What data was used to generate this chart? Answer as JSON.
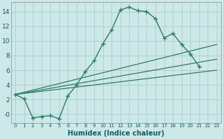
{
  "xlabel": "Humidex (Indice chaleur)",
  "background_color": "#cde8e8",
  "grid_color": "#b0d0d0",
  "line_color": "#2d7a6a",
  "xlim": [
    -0.5,
    23.5
  ],
  "ylim": [
    -1.2,
    15.3
  ],
  "xticks": [
    0,
    1,
    2,
    3,
    4,
    5,
    6,
    7,
    8,
    9,
    10,
    11,
    12,
    13,
    14,
    15,
    16,
    17,
    18,
    19,
    20,
    21,
    22,
    23
  ],
  "yticks": [
    0,
    2,
    4,
    6,
    8,
    10,
    12,
    14
  ],
  "ytick_labels": [
    "-0",
    "2",
    "4",
    "6",
    "8",
    "10",
    "12",
    "14"
  ],
  "main_series": {
    "x": [
      0,
      1,
      2,
      3,
      4,
      5,
      6,
      7,
      8,
      9,
      10,
      11,
      12,
      13,
      14,
      15,
      16,
      17,
      18,
      19,
      20,
      21
    ],
    "y": [
      2.7,
      2.1,
      -0.5,
      -0.3,
      -0.2,
      -0.6,
      2.5,
      4.0,
      5.8,
      7.3,
      9.6,
      11.5,
      14.2,
      14.6,
      14.1,
      14.0,
      13.0,
      10.4,
      11.0,
      9.5,
      8.2,
      6.5
    ]
  },
  "straight_lines": [
    {
      "x": [
        0,
        23
      ],
      "y": [
        2.7,
        9.5
      ]
    },
    {
      "x": [
        0,
        23
      ],
      "y": [
        2.7,
        7.5
      ]
    },
    {
      "x": [
        0,
        23
      ],
      "y": [
        2.7,
        6.0
      ]
    }
  ]
}
